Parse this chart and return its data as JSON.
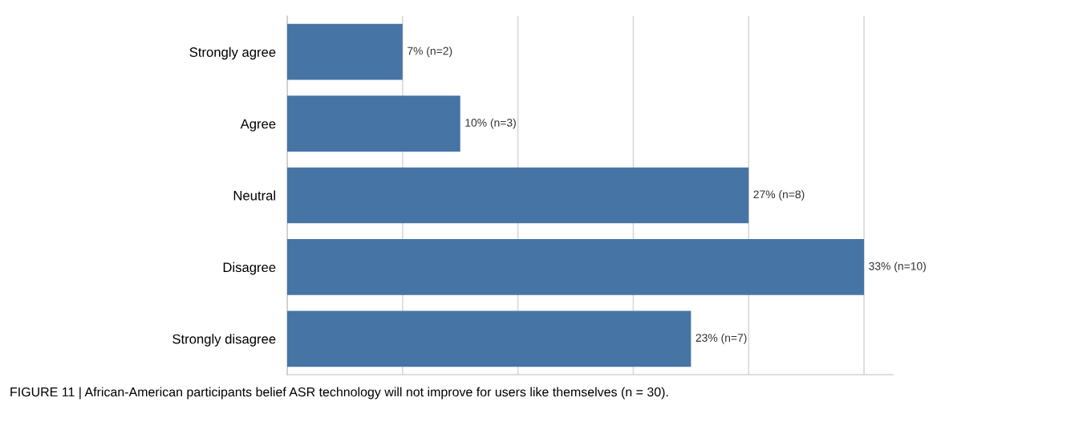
{
  "chart_data": {
    "type": "bar",
    "orientation": "horizontal",
    "categories": [
      "Strongly agree",
      "Agree",
      "Neutral",
      "Disagree",
      "Strongly disagree"
    ],
    "values": [
      2,
      3,
      8,
      10,
      7
    ],
    "value_labels": [
      "7% (n=2)",
      "10% (n=3)",
      "27% (n=8)",
      "33% (n=10)",
      "23% (n=7)"
    ],
    "color": "#4674a5",
    "xlim": [
      0,
      10.5
    ],
    "xticks": [
      {
        "value": 0,
        "label": null
      },
      {
        "value": 2,
        "label": null
      },
      {
        "value": 4,
        "label": null
      },
      {
        "value": 6,
        "label": null
      },
      {
        "value": 8,
        "label": null
      },
      {
        "value": 10,
        "label": null
      }
    ],
    "tick_labels": "y",
    "grid": "x",
    "legend": false,
    "annotations": [
      "FIGURE 11 | African-American participants belief ASR technology will not improve for users like themselves (n = 30)."
    ]
  }
}
